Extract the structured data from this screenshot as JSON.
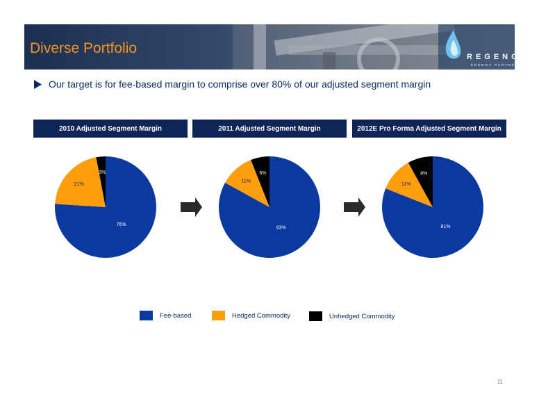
{
  "banner": {
    "title": "Diverse Portfolio"
  },
  "logo": {
    "name": "REGENCY",
    "subtitle": "ENERGY PARTNERS",
    "icon": "flame-drop-icon"
  },
  "subheading": {
    "bullet_icon": "triangle-right-icon",
    "text": "Our target is for fee-based margin to comprise over 80% of our adjusted segment margin"
  },
  "colors": {
    "fee_based": "#0a3aa0",
    "hedged": "#ff9e0d",
    "unhedged": "#000000",
    "header_bg": "#0f2457",
    "title": "#f7941d"
  },
  "chart_data": [
    {
      "type": "pie",
      "title": "2010 Adjusted Segment Margin",
      "slices": [
        {
          "name": "Fee-based",
          "value": 76,
          "label": "76%"
        },
        {
          "name": "Hedged Commodity",
          "value": 21,
          "label": "21%"
        },
        {
          "name": "Unhedged Commodity",
          "value": 3,
          "label": "3%"
        }
      ]
    },
    {
      "type": "pie",
      "title": "2011 Adjusted Segment Margin",
      "slices": [
        {
          "name": "Fee-based",
          "value": 83,
          "label": "83%"
        },
        {
          "name": "Hedged Commodity",
          "value": 11,
          "label": "11%"
        },
        {
          "name": "Unhedged Commodity",
          "value": 6,
          "label": "6%"
        }
      ]
    },
    {
      "type": "pie",
      "title": "2012E Pro Forma Adjusted Segment Margin",
      "slices": [
        {
          "name": "Fee-based",
          "value": 81,
          "label": "81%"
        },
        {
          "name": "Hedged Commodity",
          "value": 11,
          "label": "11%"
        },
        {
          "name": "Unhedged Commodity",
          "value": 8,
          "label": "8%"
        }
      ]
    }
  ],
  "legend": [
    {
      "label": "Fee-based"
    },
    {
      "label": "Hedged Commodity"
    },
    {
      "label": "Unhedged Commodity"
    }
  ],
  "page_number": "11"
}
